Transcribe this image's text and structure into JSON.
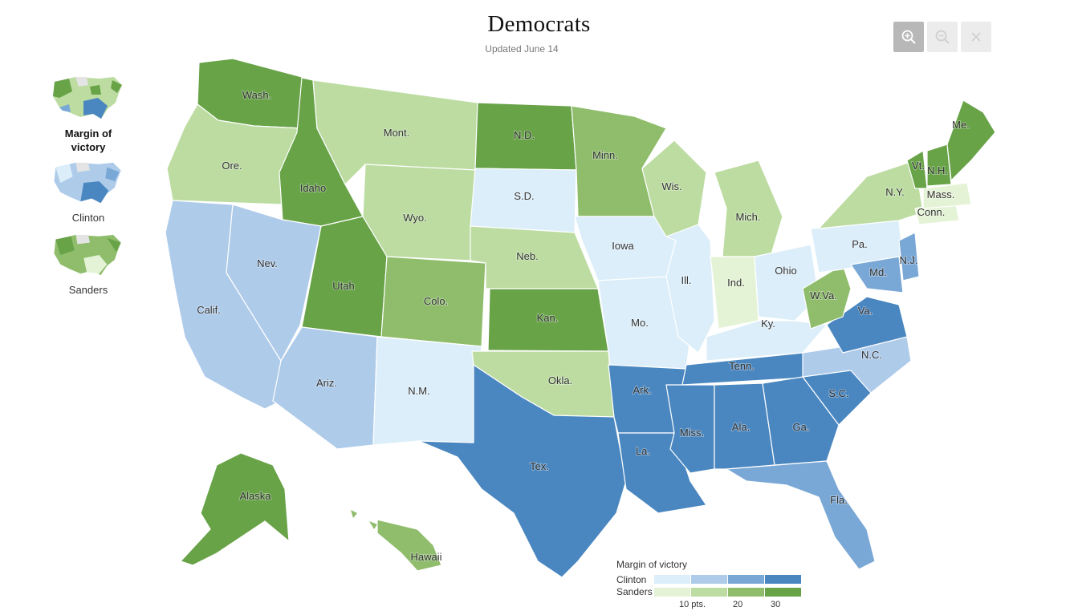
{
  "header": {
    "title": "Democrats",
    "updated": "Updated June 14"
  },
  "toolbar": {
    "zoom_in_icon": "zoom-in-icon",
    "zoom_out_icon": "zoom-out-icon",
    "close_icon": "close-icon"
  },
  "views": [
    {
      "label": "Margin of victory",
      "selected": true
    },
    {
      "label": "Clinton",
      "selected": false
    },
    {
      "label": "Sanders",
      "selected": false
    }
  ],
  "colors": {
    "clinton": [
      "#dceefa",
      "#aecbea",
      "#7aa8d6",
      "#4a87c0"
    ],
    "sanders": [
      "#e4f3d5",
      "#bcdca1",
      "#8fbd6c",
      "#68a348"
    ],
    "no_data": "#e4e4e4"
  },
  "map": {
    "states": [
      {
        "label": "Wash.",
        "winner": "sanders",
        "level": 3
      },
      {
        "label": "Ore.",
        "winner": "sanders",
        "level": 1
      },
      {
        "label": "Calif.",
        "winner": "clinton",
        "level": 1
      },
      {
        "label": "Idaho",
        "winner": "sanders",
        "level": 3
      },
      {
        "label": "Nev.",
        "winner": "clinton",
        "level": 1
      },
      {
        "label": "Mont.",
        "winner": "sanders",
        "level": 1
      },
      {
        "label": "Wyo.",
        "winner": "sanders",
        "level": 1
      },
      {
        "label": "Utah",
        "winner": "sanders",
        "level": 3
      },
      {
        "label": "Ariz.",
        "winner": "clinton",
        "level": 1
      },
      {
        "label": "Colo.",
        "winner": "sanders",
        "level": 2
      },
      {
        "label": "N.M.",
        "winner": "clinton",
        "level": 0
      },
      {
        "label": "N.D.",
        "winner": "sanders",
        "level": 3
      },
      {
        "label": "S.D.",
        "winner": "clinton",
        "level": 0
      },
      {
        "label": "Neb.",
        "winner": "sanders",
        "level": 1
      },
      {
        "label": "Kan.",
        "winner": "sanders",
        "level": 3
      },
      {
        "label": "Okla.",
        "winner": "sanders",
        "level": 1
      },
      {
        "label": "Tex.",
        "winner": "clinton",
        "level": 3
      },
      {
        "label": "Minn.",
        "winner": "sanders",
        "level": 2
      },
      {
        "label": "Iowa",
        "winner": "clinton",
        "level": 0
      },
      {
        "label": "Mo.",
        "winner": "clinton",
        "level": 0
      },
      {
        "label": "Ark.",
        "winner": "clinton",
        "level": 3
      },
      {
        "label": "La.",
        "winner": "clinton",
        "level": 3
      },
      {
        "label": "Wis.",
        "winner": "sanders",
        "level": 1
      },
      {
        "label": "Ill.",
        "winner": "clinton",
        "level": 0
      },
      {
        "label": "Mich.",
        "winner": "sanders",
        "level": 1
      },
      {
        "label": "Ind.",
        "winner": "sanders",
        "level": 0
      },
      {
        "label": "Ohio",
        "winner": "clinton",
        "level": 0
      },
      {
        "label": "Ky.",
        "winner": "clinton",
        "level": 0
      },
      {
        "label": "Tenn.",
        "winner": "clinton",
        "level": 3
      },
      {
        "label": "Miss.",
        "winner": "clinton",
        "level": 3
      },
      {
        "label": "Ala.",
        "winner": "clinton",
        "level": 3
      },
      {
        "label": "Ga.",
        "winner": "clinton",
        "level": 3
      },
      {
        "label": "Fla.",
        "winner": "clinton",
        "level": 2
      },
      {
        "label": "S.C.",
        "winner": "clinton",
        "level": 3
      },
      {
        "label": "N.C.",
        "winner": "clinton",
        "level": 1
      },
      {
        "label": "Va.",
        "winner": "clinton",
        "level": 3
      },
      {
        "label": "W.Va.",
        "winner": "sanders",
        "level": 2
      },
      {
        "label": "Pa.",
        "winner": "clinton",
        "level": 0
      },
      {
        "label": "Md.",
        "winner": "clinton",
        "level": 2
      },
      {
        "label": "N.J.",
        "winner": "clinton",
        "level": 2
      },
      {
        "label": "N.Y.",
        "winner": "sanders",
        "level": 1
      },
      {
        "label": "Conn.",
        "winner": "sanders",
        "level": 0
      },
      {
        "label": "Mass.",
        "winner": "sanders",
        "level": 0
      },
      {
        "label": "Vt.",
        "winner": "sanders",
        "level": 3
      },
      {
        "label": "N.H.",
        "winner": "sanders",
        "level": 3
      },
      {
        "label": "Me.",
        "winner": "sanders",
        "level": 3
      },
      {
        "label": "Alaska",
        "winner": "sanders",
        "level": 3
      },
      {
        "label": "Hawaii",
        "winner": "sanders",
        "level": 2
      }
    ]
  },
  "legend": {
    "title": "Margin of victory",
    "clinton_label": "Clinton",
    "sanders_label": "Sanders",
    "ticks": [
      "10 pts.",
      "20",
      "30"
    ]
  }
}
